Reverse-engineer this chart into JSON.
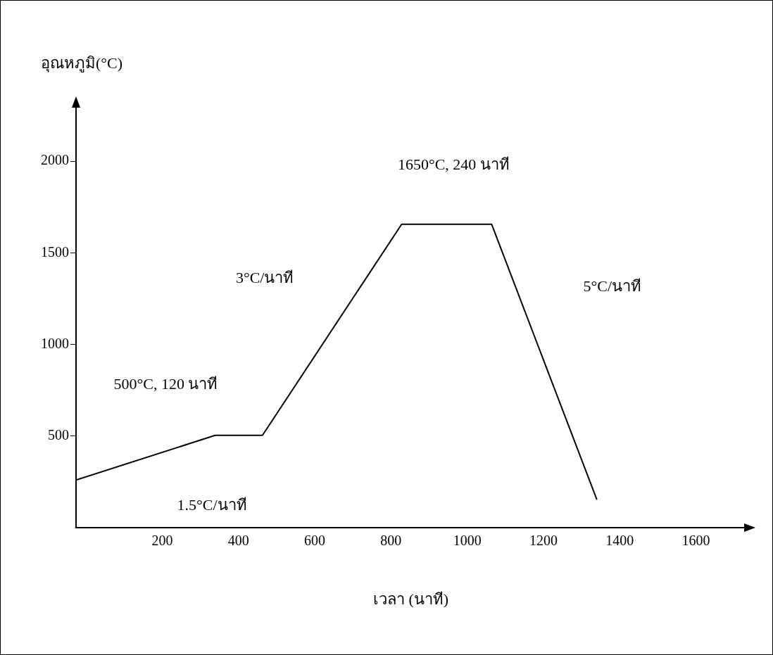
{
  "chart_data": {
    "type": "line",
    "xlabel": "เวลา (นาที)",
    "ylabel": "อุณหภูมิ(°C)",
    "x": [
      -26,
      339,
      463,
      828,
      1064,
      1340
    ],
    "series": [
      {
        "color": "#000000",
        "values": [
          260,
          504,
          504,
          1656,
          1656,
          153
        ]
      }
    ],
    "xlim": [
      -26,
      1730
    ],
    "xticks": [
      200,
      400,
      600,
      800,
      1000,
      1200,
      1400,
      1600
    ],
    "ylim": [
      0,
      2300
    ],
    "yticks": [
      500,
      1000,
      1500,
      2000
    ],
    "grid": false,
    "legend": false,
    "marker": "none",
    "line_style": "solid",
    "annotations": [
      "500°C, 120 นาที",
      "1.5°C/นาที",
      "3°C/นาที",
      "1650°C, 240 นาที",
      "5°C/นาที"
    ]
  }
}
